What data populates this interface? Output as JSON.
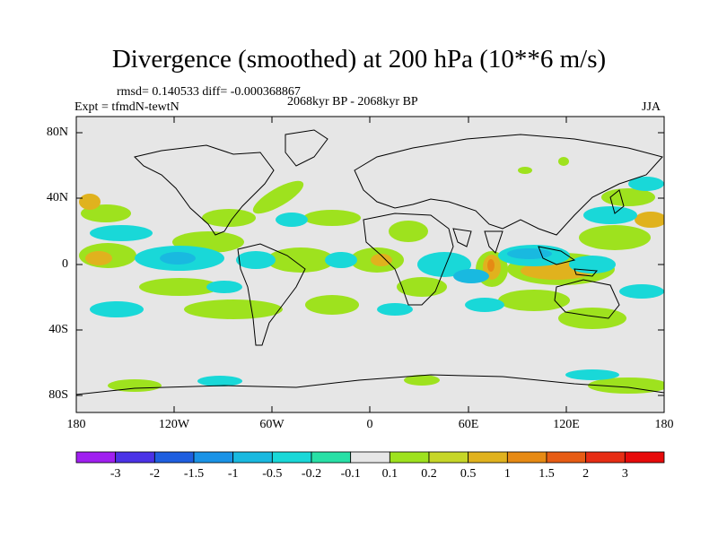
{
  "title": "Divergence (smoothed) at 200 hPa (10**6 m/s)",
  "stats": "rmsd= 0.140533 diff= -0.000368867",
  "experiment": "Expt = tfmdN-tewtN",
  "period": "2068kyr BP - 2068kyr BP",
  "season": "JJA",
  "lat_labels": [
    "80N",
    "40N",
    "0",
    "40S",
    "80S"
  ],
  "lon_labels": [
    "180",
    "120W",
    "60W",
    "0",
    "60E",
    "120E",
    "180"
  ],
  "colorbar": {
    "labels": [
      "-3",
      "-2",
      "-1.5",
      "-1",
      "-0.5",
      "-0.2",
      "-0.1",
      "0.1",
      "0.2",
      "0.5",
      "1",
      "1.5",
      "2",
      "3"
    ],
    "colors": [
      "#a020f0",
      "#4b33e6",
      "#1f5fe0",
      "#1a93e6",
      "#19b9e0",
      "#19d8d8",
      "#28e0a6",
      "#e6e6e6",
      "#9ee21e",
      "#c6d628",
      "#e0b21e",
      "#e68a14",
      "#e65c14",
      "#e62d14",
      "#e60a0a"
    ]
  },
  "colors": {
    "land_outline": "#000000",
    "background": "#e6e6e6"
  }
}
